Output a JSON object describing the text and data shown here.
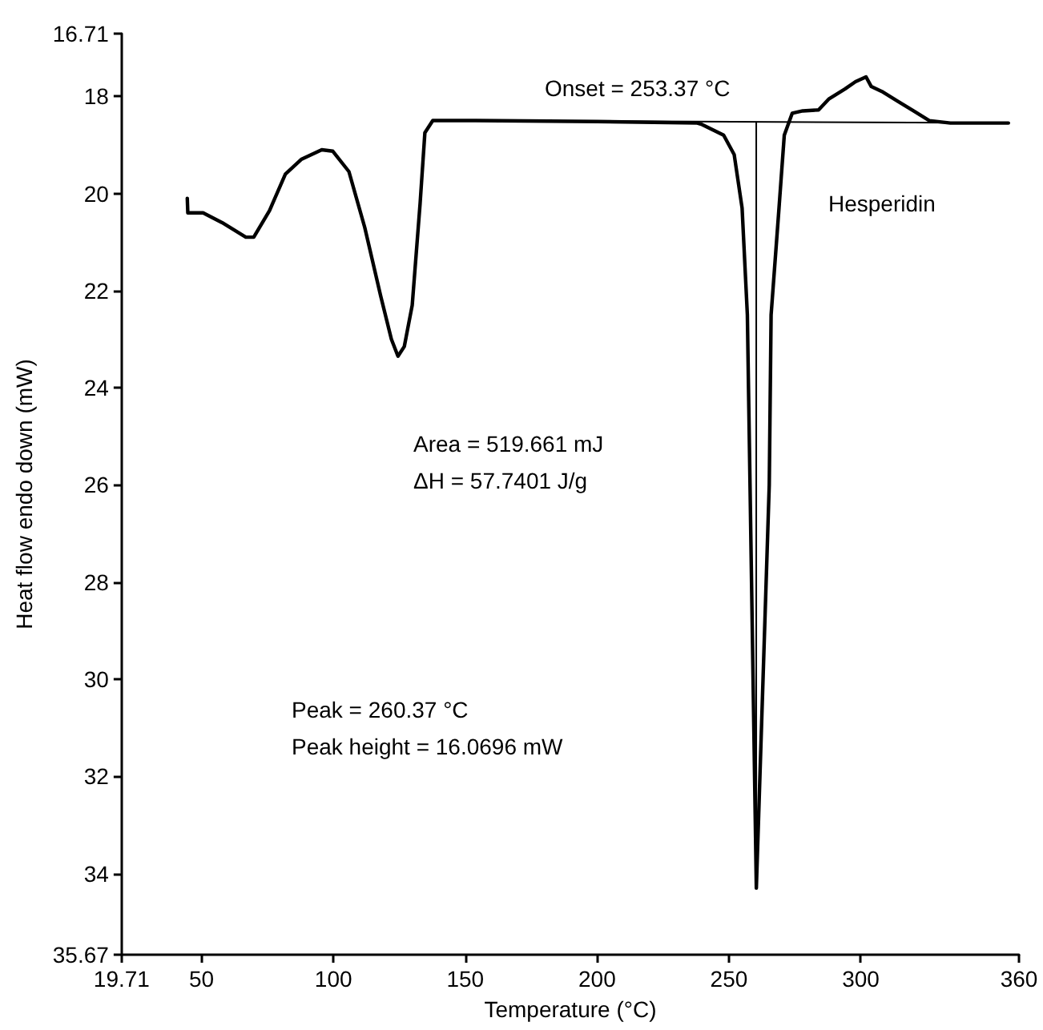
{
  "chart_data": {
    "type": "line",
    "xlabel": "Temperature (°C)",
    "ylabel": "Heat flow endo down (mW)",
    "xlim": [
      19.71,
      360
    ],
    "xticks": [
      19.71,
      50,
      100,
      150,
      200,
      250,
      300,
      360
    ],
    "ylim": [
      35.67,
      16.71
    ],
    "yticks": [
      16.71,
      18,
      20,
      22,
      24,
      26,
      28,
      30,
      32,
      34,
      35.67
    ],
    "marker": "none",
    "line_style": "solid",
    "series": [
      {
        "color": "#000000",
        "x": [
          44.6,
          44.8,
          48.2,
          50.6,
          57.8,
          66.8,
          69.8,
          75.8,
          81.8,
          87.8,
          95.6,
          99.8,
          105.9,
          111.9,
          117.9,
          122,
          124.5,
          126.9,
          129.9,
          132.9,
          134.7,
          137.7,
          141.9,
          154,
          200,
          238,
          239.8,
          248,
          252,
          255,
          257,
          260.4,
          265.3,
          266,
          269,
          271,
          274,
          278,
          284,
          288,
          294,
          298,
          302,
          304,
          308,
          314,
          320,
          326,
          334,
          356
        ],
        "values": [
          20.1,
          20.4,
          20.4,
          20.4,
          20.6,
          20.9,
          20.9,
          20.35,
          19.6,
          19.3,
          19.1,
          19.13,
          19.55,
          20.7,
          22.1,
          23.0,
          23.35,
          23.15,
          22.3,
          20.2,
          18.75,
          18.5,
          18.5,
          18.5,
          18.52,
          18.55,
          18.58,
          18.8,
          19.2,
          20.3,
          22.5,
          34.3,
          26,
          22.5,
          20.3,
          18.8,
          18.35,
          18.3,
          18.28,
          18.05,
          17.85,
          17.7,
          17.6,
          17.8,
          17.9,
          18.1,
          18.3,
          18.5,
          18.55,
          18.55
        ]
      },
      {
        "color": "#000000",
        "x": [
          154,
          356
        ],
        "values": [
          18.5,
          18.55
        ]
      },
      {
        "color": "#000000",
        "x": [
          260.37,
          260.37
        ],
        "values": [
          18.53,
          34.3
        ]
      }
    ],
    "annotations": [
      "Onset = 253.37 °C",
      "Hesperidin",
      "Area = 519.661 mJ",
      "ΔH = 57.7401 J/g",
      "Peak = 260.37 °C",
      "Peak height = 16.0696 mW"
    ]
  }
}
